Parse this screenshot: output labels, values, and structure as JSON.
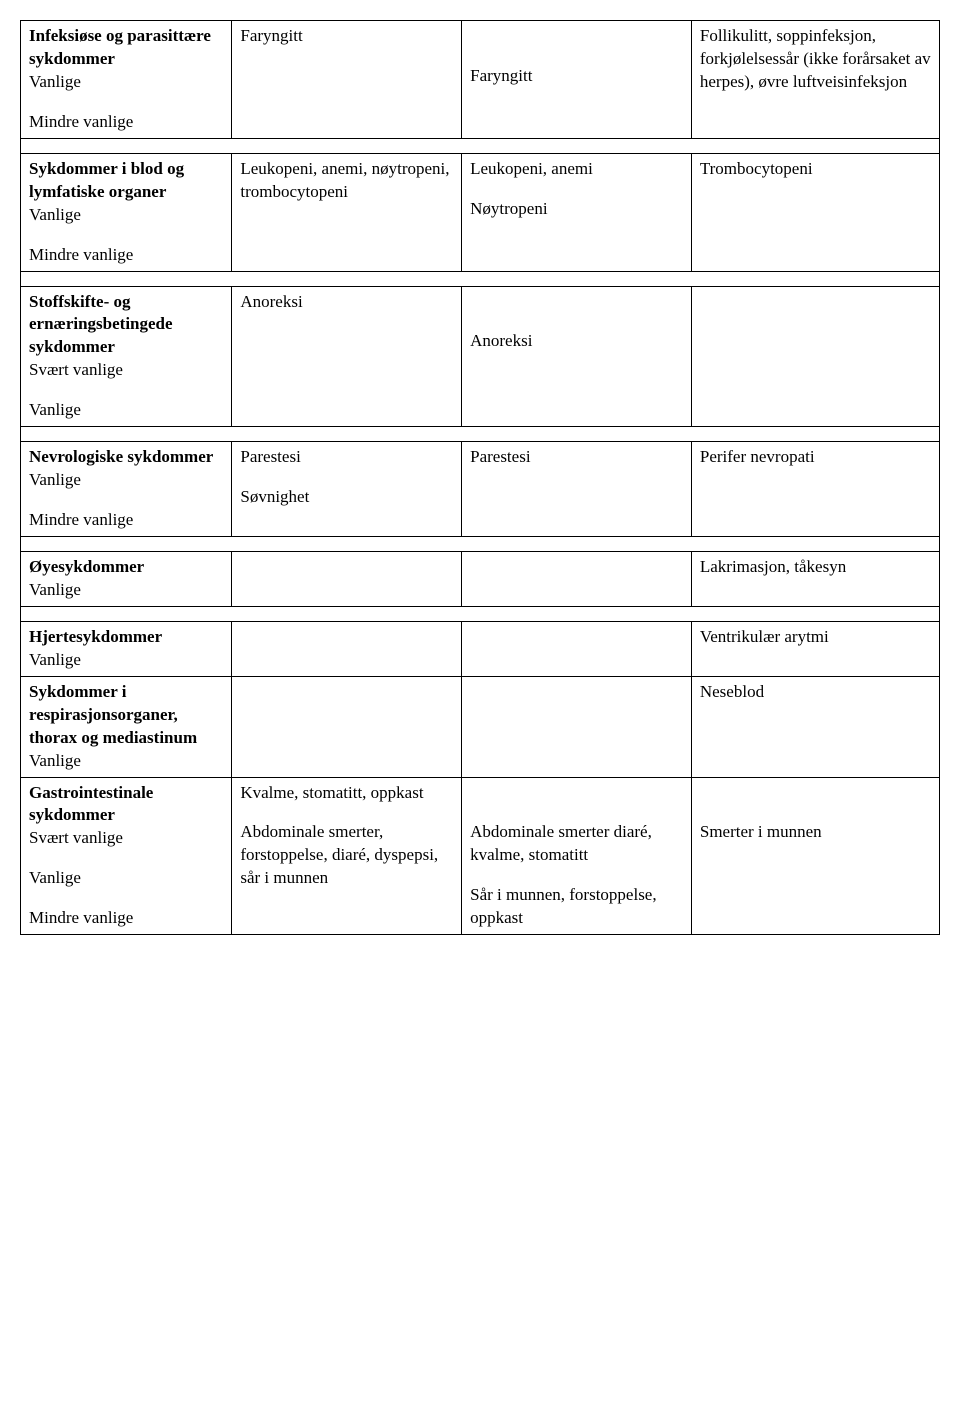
{
  "sections": [
    {
      "title": "Infeksiøse og parasittære sykdommer",
      "rows": [
        {
          "freq": "Vanlige",
          "c2": "Faryngitt",
          "c3": "",
          "c4": "Follikulitt, soppinfeksjon, forkjølelsessår (ikke forårsaket av herpes), øvre luftveisinfeksjon"
        },
        {
          "freq": "Mindre vanlige",
          "c2": "",
          "c3": "Faryngitt",
          "c4": ""
        }
      ]
    },
    {
      "title": "Sykdommer i blod og lymfatiske organer",
      "rows": [
        {
          "freq": "Vanlige",
          "c2": "Leukopeni, anemi, nøytropeni, trombocytopeni",
          "c3": "Leukopeni, anemi",
          "c4": "Trombocytopeni"
        },
        {
          "freq": "Mindre vanlige",
          "c2": "",
          "c3": "Nøytropeni",
          "c4": ""
        }
      ]
    },
    {
      "title": "Stoffskifte- og ernæringsbetingede sykdommer",
      "rows": [
        {
          "freq": "Svært vanlige",
          "c2": "Anoreksi",
          "c3": "",
          "c4": ""
        },
        {
          "freq": "Vanlige",
          "c2": "",
          "c3": "Anoreksi",
          "c4": ""
        }
      ]
    },
    {
      "title": "Nevrologiske sykdommer",
      "rows": [
        {
          "freq": "Vanlige",
          "c2": "Parestesi",
          "c3": "Parestesi",
          "c4": "Perifer nevropati"
        },
        {
          "freq": "Mindre vanlige",
          "c2": "Søvnighet",
          "c3": "",
          "c4": ""
        }
      ]
    },
    {
      "title": "Øyesykdommer",
      "rows": [
        {
          "freq": "Vanlige",
          "c2": "",
          "c3": "",
          "c4": "Lakrimasjon, tåkesyn"
        }
      ]
    },
    {
      "title": "Hjertesykdommer",
      "noSpacerAfter": true,
      "rows": [
        {
          "freq": "Vanlige",
          "c2": "",
          "c3": "",
          "c4": "Ventrikulær arytmi"
        }
      ]
    },
    {
      "title": "Sykdommer i respirasjonsorganer, thorax og mediastinum",
      "noSpacerAfter": true,
      "rows": [
        {
          "freq": "Vanlige",
          "c2": "",
          "c3": "",
          "c4": "Neseblod"
        }
      ]
    },
    {
      "title": "Gastrointestinale sykdommer",
      "rows": [
        {
          "freq": "Svært vanlige",
          "c2": "Kvalme, stomatitt, oppkast",
          "c3": "",
          "c4": ""
        },
        {
          "freq": "Vanlige",
          "c2": "Abdominale smerter, forstoppelse, diaré, dyspepsi, sår i munnen",
          "c3": "Abdominale smerter diaré, kvalme, stomatitt",
          "c4": "Smerter i munnen"
        },
        {
          "freq": "Mindre vanlige",
          "c2": "",
          "c3": "Sår i munnen, forstoppelse, oppkast",
          "c4": ""
        }
      ]
    }
  ]
}
